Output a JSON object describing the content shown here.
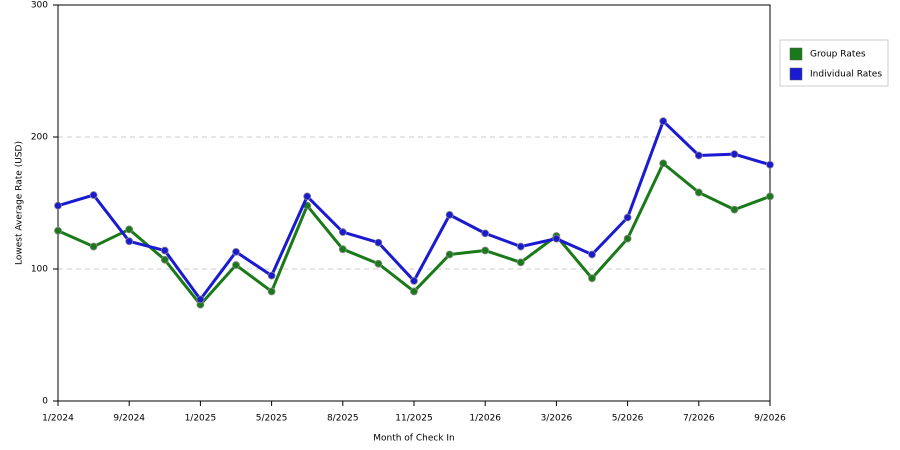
{
  "chart_data": {
    "type": "line",
    "x_label": "Month of Check In",
    "y_label": "Lowest Average Rate (USD)",
    "categories": [
      "1/2024",
      null,
      "9/2024",
      null,
      "1/2025",
      null,
      "5/2025",
      null,
      "8/2025",
      null,
      "11/2025",
      null,
      "1/2026",
      null,
      "3/2026",
      null,
      "5/2026",
      null,
      "7/2026",
      null,
      "9/2026"
    ],
    "series": [
      {
        "name": "Group Rates",
        "color": "#1a7a1a",
        "values": [
          129,
          117,
          130,
          107,
          73,
          103,
          83,
          148,
          115,
          104,
          83,
          111,
          114,
          105,
          125,
          93,
          123,
          180,
          158,
          145,
          155
        ]
      },
      {
        "name": "Individual Rates",
        "color": "#1a1ad0",
        "values": [
          148,
          156,
          121,
          114,
          77,
          113,
          95,
          155,
          128,
          120,
          91,
          141,
          127,
          117,
          123,
          111,
          139,
          212,
          186,
          187,
          179
        ]
      }
    ],
    "ylim": [
      0,
      300
    ],
    "yticks": [
      0,
      100,
      200,
      300
    ],
    "grid": true,
    "legend": "right"
  }
}
